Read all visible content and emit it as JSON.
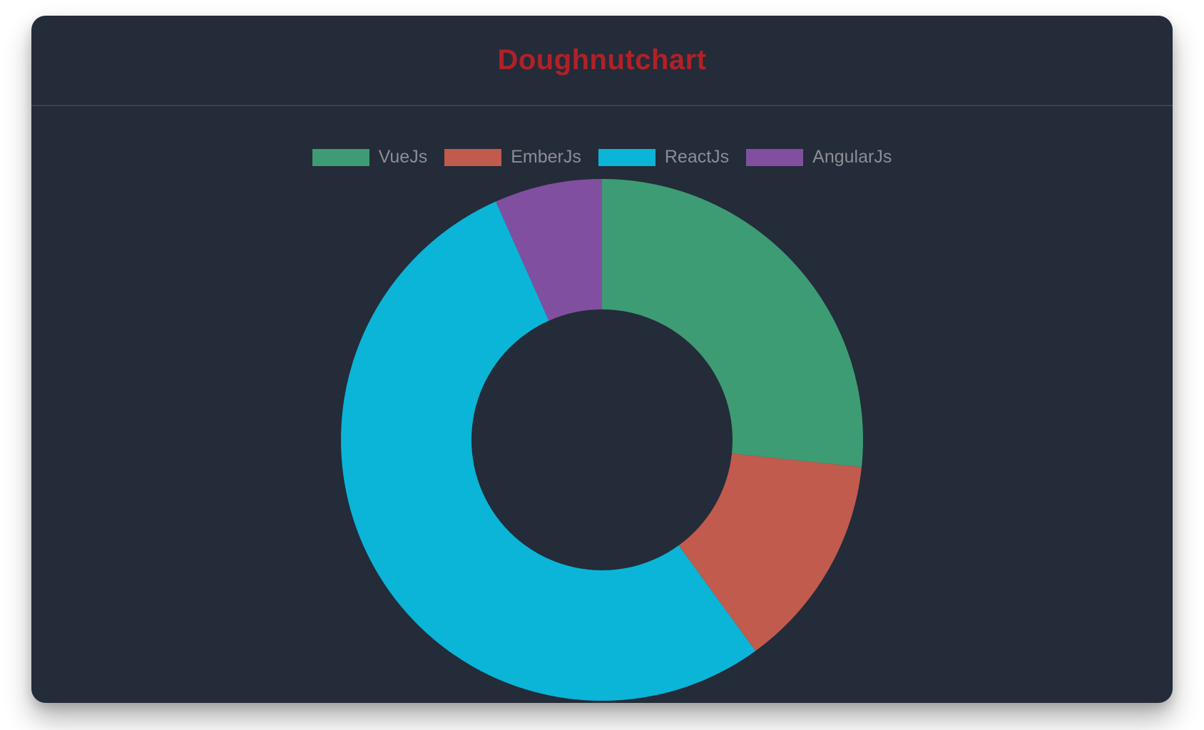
{
  "header": {
    "title": "Doughnutchart",
    "title_color": "#b02127"
  },
  "card": {
    "background_color": "#242b39",
    "divider_color": "#3a4159"
  },
  "legend": {
    "text_color": "#8b8e95"
  },
  "chart_data": {
    "type": "doughnut",
    "title": "Doughnutchart",
    "labels": [
      "VueJs",
      "EmberJs",
      "ReactJs",
      "AngularJs"
    ],
    "values": [
      40,
      20,
      80,
      10
    ],
    "colors": [
      "#3d9c74",
      "#c05b4d",
      "#0ab5d8",
      "#814fa0"
    ],
    "cutout_percent": 50,
    "outer_radius": 366,
    "rotation_deg": 0,
    "direction": "clockwise",
    "legend_position": "top",
    "background_color": "#242b39"
  }
}
